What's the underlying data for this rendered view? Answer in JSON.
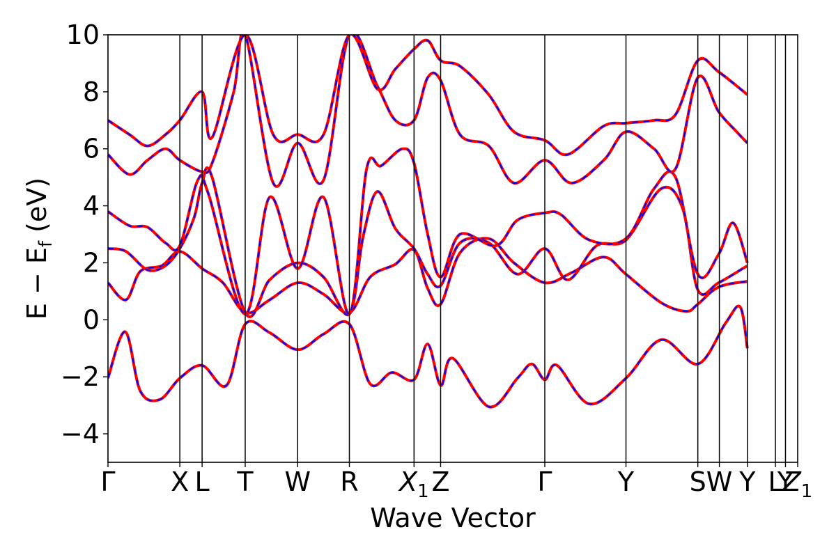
{
  "chart_data": {
    "type": "line",
    "title": "",
    "xlabel": "Wave Vector",
    "ylabel": "E − E",
    "ylabel_subscript": "f",
    "ylabel_unit": " (eV)",
    "ylim": [
      -5,
      10
    ],
    "yticks": [
      -4,
      -2,
      0,
      2,
      4,
      6,
      8,
      10
    ],
    "ytick_labels": [
      "−4",
      "−2",
      "0",
      "2",
      "4",
      "6",
      "8",
      "10"
    ],
    "grid": false,
    "legend": "none",
    "kpoints": [
      {
        "label": "Γ",
        "sub": "",
        "k": 0.0
      },
      {
        "label": "X",
        "sub": "",
        "k": 1.0
      },
      {
        "label": "L",
        "sub": "",
        "k": 1.31
      },
      {
        "label": "T",
        "sub": "",
        "k": 1.91
      },
      {
        "label": "W",
        "sub": "",
        "k": 2.64
      },
      {
        "label": "R",
        "sub": "",
        "k": 3.36
      },
      {
        "label": "X",
        "sub": "1",
        "k": 4.26
      },
      {
        "label": "Z",
        "sub": "",
        "k": 4.63
      },
      {
        "label": "Γ",
        "sub": "",
        "k": 6.08
      },
      {
        "label": "Y",
        "sub": "",
        "k": 7.21
      },
      {
        "label": "S",
        "sub": "",
        "k": 8.21
      },
      {
        "label": "W",
        "sub": "",
        "k": 8.51
      },
      {
        "label": "Y",
        "sub": "",
        "k": 8.9
      },
      {
        "label": "L",
        "sub": "",
        "k": 9.29
      },
      {
        "label": "Y",
        "sub": "",
        "k": 9.43
      },
      {
        "label": "Z",
        "sub": "1",
        "k": 9.6
      }
    ],
    "series": [
      {
        "style": "solid",
        "color": "#ff0000",
        "points": [
          [
            [
              0,
              -2.05
            ],
            [
              0.24,
              -0.42
            ],
            [
              0.45,
              -2.5
            ],
            [
              0.72,
              -2.8
            ],
            [
              1.0,
              -2.05
            ],
            [
              1.31,
              -1.6
            ],
            [
              1.65,
              -2.3
            ],
            [
              1.91,
              -0.15
            ],
            [
              2.25,
              -0.45
            ],
            [
              2.64,
              -1.05
            ],
            [
              3.0,
              -0.5
            ],
            [
              3.36,
              -0.15
            ],
            [
              3.65,
              -2.25
            ],
            [
              3.95,
              -1.85
            ],
            [
              4.26,
              -2.1
            ],
            [
              4.45,
              -0.85
            ],
            [
              4.63,
              -2.3
            ],
            [
              4.8,
              -1.35
            ],
            [
              5.3,
              -3.05
            ],
            [
              5.7,
              -2.05
            ],
            [
              5.9,
              -1.55
            ],
            [
              6.08,
              -2.1
            ],
            [
              6.25,
              -1.6
            ],
            [
              6.7,
              -2.95
            ],
            [
              7.21,
              -2.05
            ],
            [
              7.7,
              -0.7
            ],
            [
              8.21,
              -1.55
            ],
            [
              8.6,
              -0.1
            ],
            [
              8.8,
              0.45
            ],
            [
              8.9,
              -1.0
            ]
          ],
          [
            [
              0,
              1.3
            ],
            [
              0.25,
              0.7
            ],
            [
              0.45,
              1.7
            ],
            [
              0.75,
              1.9
            ],
            [
              1.0,
              2.4
            ],
            [
              1.31,
              1.8
            ],
            [
              1.6,
              1.3
            ],
            [
              1.91,
              0.25
            ],
            [
              2.25,
              0.7
            ],
            [
              2.64,
              1.3
            ],
            [
              3.0,
              0.9
            ],
            [
              3.36,
              0.25
            ],
            [
              3.65,
              1.5
            ],
            [
              4.0,
              1.95
            ],
            [
              4.26,
              2.45
            ],
            [
              4.45,
              1.1
            ],
            [
              4.63,
              0.55
            ],
            [
              4.9,
              2.35
            ],
            [
              5.3,
              2.85
            ],
            [
              5.65,
              2.0
            ],
            [
              6.08,
              1.3
            ],
            [
              6.45,
              1.65
            ],
            [
              6.9,
              2.2
            ],
            [
              7.21,
              1.6
            ],
            [
              7.7,
              0.6
            ],
            [
              8.05,
              0.3
            ],
            [
              8.21,
              0.55
            ],
            [
              8.5,
              1.15
            ],
            [
              8.9,
              1.35
            ]
          ],
          [
            [
              0,
              2.5
            ],
            [
              0.25,
              2.4
            ],
            [
              0.55,
              1.75
            ],
            [
              0.8,
              1.9
            ],
            [
              1.0,
              2.5
            ],
            [
              1.2,
              3.6
            ],
            [
              1.31,
              4.8
            ],
            [
              1.45,
              5.0
            ],
            [
              1.91,
              0.25
            ],
            [
              2.25,
              1.4
            ],
            [
              2.64,
              2.0
            ],
            [
              3.0,
              1.5
            ],
            [
              3.36,
              0.2
            ],
            [
              3.55,
              2.9
            ],
            [
              3.75,
              4.5
            ],
            [
              4.0,
              3.2
            ],
            [
              4.26,
              2.5
            ],
            [
              4.45,
              1.6
            ],
            [
              4.63,
              1.2
            ],
            [
              4.9,
              2.7
            ],
            [
              5.3,
              2.7
            ],
            [
              5.7,
              1.6
            ],
            [
              6.08,
              2.5
            ],
            [
              6.4,
              1.4
            ],
            [
              6.8,
              2.6
            ],
            [
              7.21,
              2.8
            ],
            [
              7.7,
              4.6
            ],
            [
              8.0,
              3.9
            ],
            [
              8.21,
              1.05
            ],
            [
              8.5,
              1.3
            ],
            [
              8.9,
              1.9
            ]
          ],
          [
            [
              0,
              3.8
            ],
            [
              0.3,
              3.3
            ],
            [
              0.55,
              3.25
            ],
            [
              0.8,
              2.7
            ],
            [
              1.0,
              2.6
            ],
            [
              1.25,
              4.9
            ],
            [
              1.4,
              4.4
            ],
            [
              1.91,
              0.2
            ],
            [
              2.25,
              4.3
            ],
            [
              2.64,
              1.8
            ],
            [
              3.0,
              4.3
            ],
            [
              3.36,
              0.2
            ],
            [
              3.6,
              5.3
            ],
            [
              3.8,
              5.4
            ],
            [
              4.1,
              6.0
            ],
            [
              4.26,
              5.5
            ],
            [
              4.45,
              3.0
            ],
            [
              4.63,
              1.5
            ],
            [
              4.9,
              3.0
            ],
            [
              5.4,
              2.6
            ],
            [
              5.7,
              3.5
            ],
            [
              6.08,
              3.75
            ],
            [
              6.3,
              3.7
            ],
            [
              6.7,
              2.8
            ],
            [
              7.21,
              2.85
            ],
            [
              7.6,
              4.6
            ],
            [
              7.9,
              5.0
            ],
            [
              8.21,
              1.6
            ],
            [
              8.5,
              2.3
            ],
            [
              8.7,
              3.4
            ],
            [
              8.9,
              2.0
            ]
          ],
          [
            [
              0,
              5.8
            ],
            [
              0.3,
              5.1
            ],
            [
              0.55,
              5.6
            ],
            [
              0.8,
              6.0
            ],
            [
              1.0,
              5.6
            ],
            [
              1.31,
              5.2
            ],
            [
              1.45,
              5.5
            ],
            [
              1.75,
              8.0
            ],
            [
              1.91,
              10.0
            ],
            [
              2.3,
              4.8
            ],
            [
              2.64,
              6.2
            ],
            [
              3.0,
              4.9
            ],
            [
              3.36,
              10.0
            ],
            [
              3.75,
              8.2
            ],
            [
              4.0,
              7.0
            ],
            [
              4.26,
              7.0
            ],
            [
              4.45,
              8.5
            ],
            [
              4.63,
              8.4
            ],
            [
              4.9,
              6.5
            ],
            [
              5.3,
              6.1
            ],
            [
              5.65,
              4.8
            ],
            [
              6.08,
              5.6
            ],
            [
              6.45,
              4.8
            ],
            [
              6.9,
              5.6
            ],
            [
              7.21,
              6.6
            ],
            [
              7.6,
              6.0
            ],
            [
              7.9,
              5.3
            ],
            [
              8.21,
              8.5
            ],
            [
              8.5,
              7.3
            ],
            [
              8.75,
              6.6
            ],
            [
              8.9,
              6.2
            ]
          ],
          [
            [
              0,
              7.0
            ],
            [
              0.3,
              6.5
            ],
            [
              0.55,
              6.1
            ],
            [
              0.8,
              6.5
            ],
            [
              1.0,
              7.0
            ],
            [
              1.31,
              8.0
            ],
            [
              1.45,
              6.4
            ],
            [
              1.91,
              10.0
            ],
            [
              2.3,
              6.5
            ],
            [
              2.64,
              6.5
            ],
            [
              3.0,
              6.5
            ],
            [
              3.36,
              10.0
            ],
            [
              3.75,
              8.1
            ],
            [
              4.0,
              8.8
            ],
            [
              4.26,
              9.5
            ],
            [
              4.45,
              9.8
            ],
            [
              4.63,
              9.1
            ],
            [
              4.9,
              8.9
            ],
            [
              5.3,
              7.9
            ],
            [
              5.65,
              6.6
            ],
            [
              6.08,
              6.3
            ],
            [
              6.4,
              5.8
            ],
            [
              6.9,
              6.8
            ],
            [
              7.21,
              6.9
            ],
            [
              7.6,
              7.0
            ],
            [
              7.9,
              7.2
            ],
            [
              8.21,
              9.1
            ],
            [
              8.5,
              8.7
            ],
            [
              8.9,
              7.9
            ]
          ]
        ]
      }
    ]
  }
}
